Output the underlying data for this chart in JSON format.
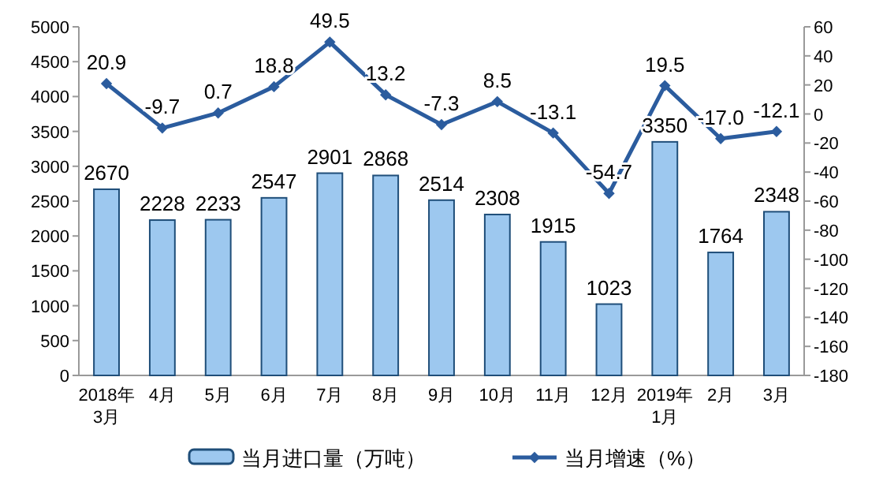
{
  "chart_data": {
    "type": "bar",
    "categories": [
      "2018年\n3月",
      "4月",
      "5月",
      "6月",
      "7月",
      "8月",
      "9月",
      "10月",
      "11月",
      "12月",
      "2019年\n1月",
      "2月",
      "3月"
    ],
    "series": [
      {
        "name": "当月进口量（万吨）",
        "color": "#9dc8ef",
        "values": [
          2670,
          2228,
          2233,
          2547,
          2901,
          2868,
          2514,
          2308,
          1915,
          1023,
          3350,
          1764,
          2348
        ]
      },
      {
        "name": "当月增速（%）",
        "type": "line",
        "axis": "y2",
        "color": "#2b5c9e",
        "marker": "diamond",
        "values": [
          20.9,
          -9.7,
          0.7,
          18.8,
          49.5,
          13.2,
          -7.3,
          8.5,
          -13.1,
          -54.7,
          19.5,
          -17.0,
          -12.1
        ],
        "value_labels": [
          "20.9",
          "-9.7",
          "0.7",
          "18.8",
          "49.5",
          "13.2",
          "-7.3",
          "8.5",
          "-13.1",
          "-54.7",
          "19.5",
          "-17.0",
          "-12.1"
        ]
      }
    ],
    "ylim": [
      0,
      5000
    ],
    "yticks": [
      0,
      500,
      1000,
      1500,
      2000,
      2500,
      3000,
      3500,
      4000,
      4500,
      5000
    ],
    "y2lim": [
      -180,
      60
    ],
    "y2ticks": [
      -180,
      -160,
      -140,
      -120,
      -100,
      -80,
      -60,
      -40,
      -20,
      0,
      20,
      40,
      60
    ],
    "data_labels": true,
    "legend": "bottom",
    "grid": false
  }
}
